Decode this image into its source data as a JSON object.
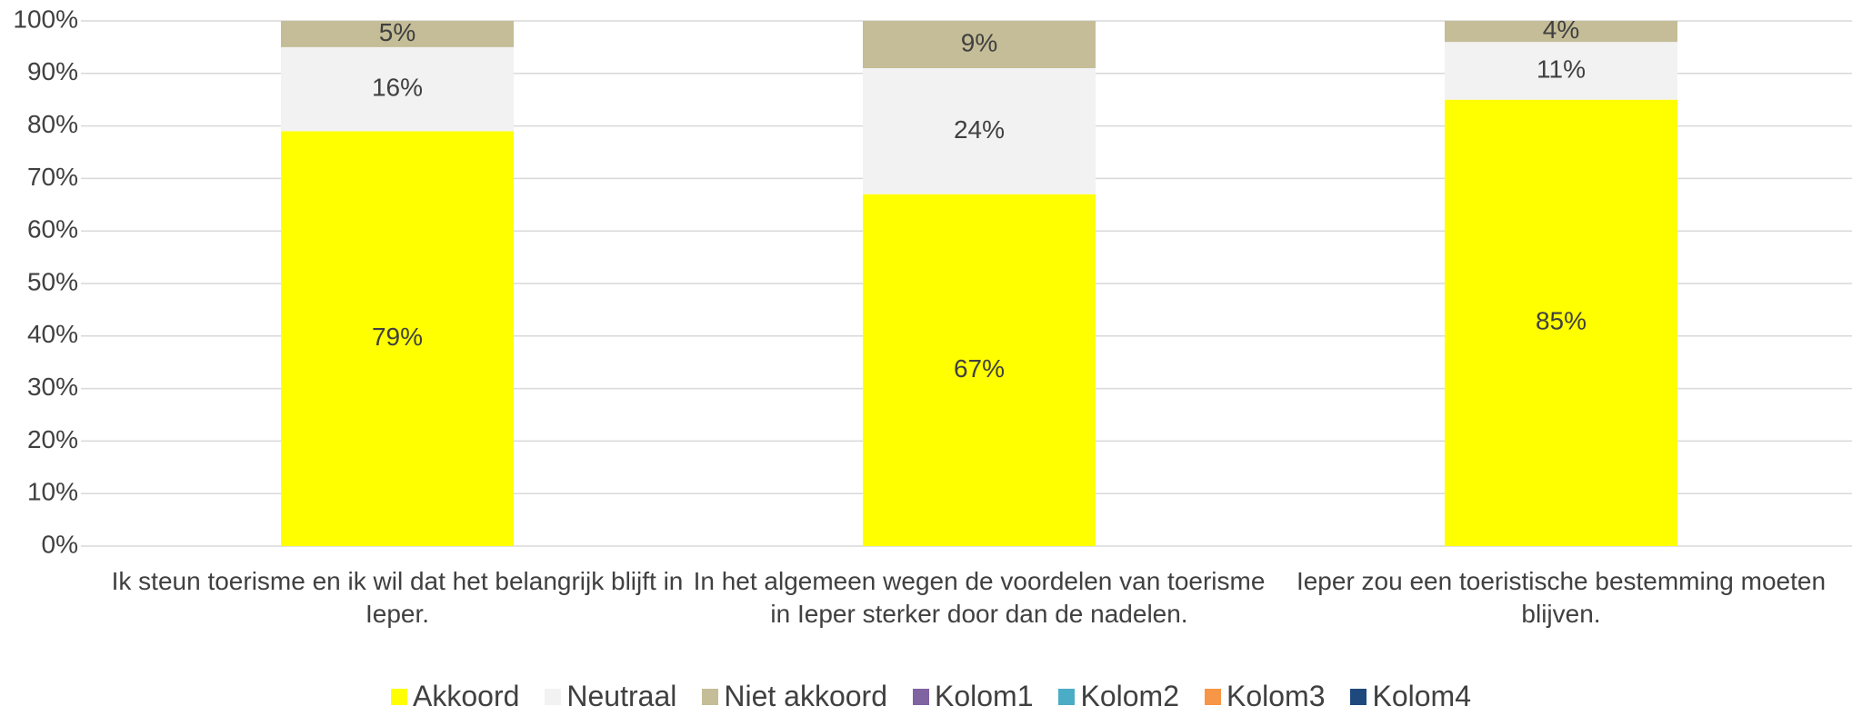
{
  "chart_data": {
    "type": "stacked_bar",
    "categories": [
      "Ik steun toerisme en ik wil dat het belangrijk blijft in Ieper.",
      "In het algemeen wegen de voordelen van toerisme in Ieper sterker door dan de nadelen.",
      "Ieper zou een toeristische bestemming moeten blijven."
    ],
    "series": [
      {
        "name": "Akkoord",
        "color": "#ffff00",
        "values": [
          79,
          67,
          85
        ],
        "value_labels": [
          "79%",
          "67%",
          "85%"
        ]
      },
      {
        "name": "Neutraal",
        "color": "#f2f2f2",
        "values": [
          16,
          24,
          11
        ],
        "value_labels": [
          "16%",
          "24%",
          "11%"
        ]
      },
      {
        "name": "Niet akkoord",
        "color": "#c4bd97",
        "values": [
          5,
          9,
          4
        ],
        "value_labels": [
          "5%",
          "9%",
          "4%"
        ]
      },
      {
        "name": "Kolom1",
        "color": "#8064a2",
        "values": [
          null,
          null,
          null
        ]
      },
      {
        "name": "Kolom2",
        "color": "#4bacc6",
        "values": [
          null,
          null,
          null
        ]
      },
      {
        "name": "Kolom3",
        "color": "#f79646",
        "values": [
          null,
          null,
          null
        ]
      },
      {
        "name": "Kolom4",
        "color": "#1f497d",
        "values": [
          null,
          null,
          null
        ]
      }
    ],
    "ylim": [
      0,
      100
    ],
    "yticks": [
      {
        "value": 0,
        "label": "0%"
      },
      {
        "value": 10,
        "label": "10%"
      },
      {
        "value": 20,
        "label": "20%"
      },
      {
        "value": 30,
        "label": "30%"
      },
      {
        "value": 40,
        "label": "40%"
      },
      {
        "value": 50,
        "label": "50%"
      },
      {
        "value": 60,
        "label": "60%"
      },
      {
        "value": 70,
        "label": "70%"
      },
      {
        "value": 80,
        "label": "80%"
      },
      {
        "value": 90,
        "label": "90%"
      },
      {
        "value": 100,
        "label": "100%"
      }
    ],
    "grid": true,
    "legend": "bottom"
  }
}
